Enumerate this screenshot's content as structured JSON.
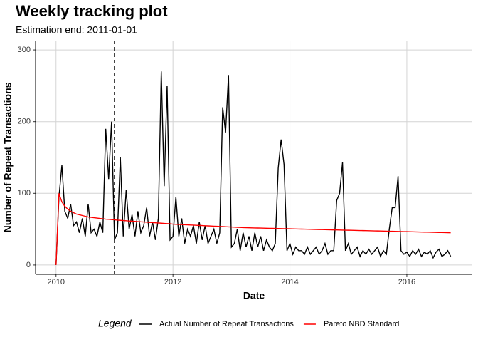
{
  "chart_data": {
    "type": "line",
    "title": "Weekly tracking plot",
    "subtitle": "Estimation end: 2011-01-01",
    "x_label": "Date",
    "y_label": "Number of Repeat Transactions",
    "legend_title": "Legend",
    "legend_position": "bottom",
    "grid": true,
    "vline": 2011,
    "xlim": [
      2009.65,
      2017.12
    ],
    "ylim": [
      -13,
      313
    ],
    "xticks": [
      2010,
      2012,
      2014,
      2016
    ],
    "yticks": [
      0,
      100,
      200,
      300
    ],
    "x": [
      2010.0,
      2010.05,
      2010.1,
      2010.15,
      2010.2,
      2010.25,
      2010.3,
      2010.35,
      2010.4,
      2010.45,
      2010.5,
      2010.55,
      2010.6,
      2010.65,
      2010.7,
      2010.75,
      2010.8,
      2010.85,
      2010.9,
      2010.95,
      2011.0,
      2011.05,
      2011.1,
      2011.15,
      2011.2,
      2011.25,
      2011.3,
      2011.35,
      2011.4,
      2011.45,
      2011.5,
      2011.55,
      2011.6,
      2011.65,
      2011.7,
      2011.75,
      2011.8,
      2011.85,
      2011.9,
      2011.95,
      2012.0,
      2012.05,
      2012.1,
      2012.15,
      2012.2,
      2012.25,
      2012.3,
      2012.35,
      2012.4,
      2012.45,
      2012.5,
      2012.55,
      2012.6,
      2012.65,
      2012.7,
      2012.75,
      2012.8,
      2012.85,
      2012.9,
      2012.95,
      2013.0,
      2013.05,
      2013.1,
      2013.15,
      2013.2,
      2013.25,
      2013.3,
      2013.35,
      2013.4,
      2013.45,
      2013.5,
      2013.55,
      2013.6,
      2013.65,
      2013.7,
      2013.75,
      2013.8,
      2013.85,
      2013.9,
      2013.95,
      2014.0,
      2014.05,
      2014.1,
      2014.15,
      2014.2,
      2014.25,
      2014.3,
      2014.35,
      2014.4,
      2014.45,
      2014.5,
      2014.55,
      2014.6,
      2014.65,
      2014.7,
      2014.75,
      2014.8,
      2014.85,
      2014.9,
      2014.95,
      2015.0,
      2015.05,
      2015.1,
      2015.15,
      2015.2,
      2015.25,
      2015.3,
      2015.35,
      2015.4,
      2015.45,
      2015.5,
      2015.55,
      2015.6,
      2015.65,
      2015.7,
      2015.75,
      2015.8,
      2015.85,
      2015.9,
      2015.95,
      2016.0,
      2016.05,
      2016.1,
      2016.15,
      2016.2,
      2016.25,
      2016.3,
      2016.35,
      2016.4,
      2016.45,
      2016.5,
      2016.55,
      2016.6,
      2016.65,
      2016.7,
      2016.75
    ],
    "series": [
      {
        "name": "Actual Number of Repeat Transactions",
        "color": "#000000",
        "values": [
          0,
          95,
          139,
          75,
          65,
          85,
          55,
          60,
          45,
          65,
          40,
          85,
          45,
          50,
          40,
          60,
          45,
          190,
          120,
          200,
          35,
          45,
          150,
          40,
          105,
          50,
          70,
          40,
          75,
          45,
          55,
          80,
          40,
          60,
          35,
          65,
          270,
          110,
          250,
          35,
          40,
          95,
          40,
          65,
          30,
          50,
          40,
          55,
          30,
          60,
          35,
          55,
          30,
          40,
          50,
          30,
          45,
          220,
          185,
          265,
          25,
          30,
          50,
          20,
          45,
          25,
          40,
          20,
          45,
          25,
          40,
          20,
          35,
          25,
          20,
          30,
          135,
          175,
          140,
          20,
          30,
          15,
          25,
          20,
          20,
          15,
          25,
          15,
          20,
          25,
          15,
          20,
          30,
          15,
          20,
          20,
          90,
          100,
          143,
          20,
          30,
          15,
          20,
          25,
          12,
          20,
          15,
          22,
          15,
          20,
          25,
          12,
          20,
          15,
          50,
          80,
          80,
          124,
          20,
          15,
          18,
          12,
          20,
          15,
          22,
          12,
          18,
          15,
          20,
          10,
          18,
          22,
          12,
          15,
          20,
          12
        ]
      },
      {
        "name": "Pareto NBD Standard",
        "color": "#ff0000",
        "values": [
          0,
          100,
          88,
          82,
          78,
          75,
          73,
          71,
          70,
          69,
          68,
          67,
          66.5,
          66,
          65.5,
          65,
          64.5,
          64,
          63.7,
          63.3,
          63,
          62.6,
          62.3,
          62,
          61.7,
          61.4,
          61.1,
          60.8,
          60.5,
          60.2,
          60,
          59.7,
          59.4,
          59.1,
          58.9,
          58.6,
          58.3,
          58,
          57.8,
          57.5,
          57,
          56.8,
          56.6,
          56.4,
          56.2,
          56,
          55.8,
          55.6,
          55.4,
          55.2,
          55,
          54.8,
          54.6,
          54.4,
          54.2,
          54,
          53.8,
          53.6,
          53.4,
          53.2,
          53,
          52.8,
          52.6,
          52.4,
          52.2,
          52,
          51.9,
          51.8,
          51.7,
          51.6,
          51.5,
          51.4,
          51.3,
          51.2,
          51.1,
          51,
          50.9,
          50.8,
          50.7,
          50.6,
          50.5,
          50.4,
          50.3,
          50.2,
          50.1,
          50,
          49.9,
          49.8,
          49.7,
          49.6,
          49.5,
          49.4,
          49.3,
          49.2,
          49.1,
          49,
          48.9,
          48.8,
          48.7,
          48.6,
          48.5,
          48.4,
          48.3,
          48.2,
          48.1,
          48,
          47.9,
          47.8,
          47.7,
          47.6,
          47.5,
          47.4,
          47.3,
          47.2,
          47.1,
          47,
          46.9,
          46.8,
          46.7,
          46.6,
          46.5,
          46.4,
          46.3,
          46.2,
          46.1,
          46,
          45.9,
          45.8,
          45.7,
          45.6,
          45.5,
          45.4,
          45.3,
          45.2,
          45.1,
          45
        ]
      }
    ]
  }
}
